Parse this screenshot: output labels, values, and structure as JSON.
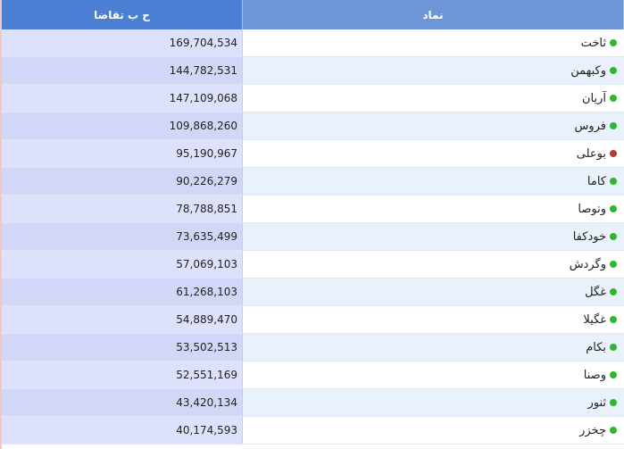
{
  "header": {
    "col_demand": "ح ب تقاضا",
    "col_symbol": "نماد"
  },
  "colors": {
    "up": "#2eb82e",
    "down": "#b03a3a",
    "header_left": "#4a7fd4",
    "header_right": "#6e95d8"
  },
  "rows": [
    {
      "symbol": "ثاخت",
      "demand_volume": "169,704,534",
      "status": "green"
    },
    {
      "symbol": "وکبهمن",
      "demand_volume": "144,782,531",
      "status": "green"
    },
    {
      "symbol": "آریان",
      "demand_volume": "147,109,068",
      "status": "green"
    },
    {
      "symbol": "فروس",
      "demand_volume": "109,868,260",
      "status": "green"
    },
    {
      "symbol": "بوعلی",
      "demand_volume": "95,190,967",
      "status": "red"
    },
    {
      "symbol": "کاما",
      "demand_volume": "90,226,279",
      "status": "green"
    },
    {
      "symbol": "وتوصا",
      "demand_volume": "78,788,851",
      "status": "green"
    },
    {
      "symbol": "خودکفا",
      "demand_volume": "73,635,499",
      "status": "green"
    },
    {
      "symbol": "وگردش",
      "demand_volume": "57,069,103",
      "status": "green"
    },
    {
      "symbol": "غگل",
      "demand_volume": "61,268,103",
      "status": "green"
    },
    {
      "symbol": "غگیلا",
      "demand_volume": "54,889,470",
      "status": "green"
    },
    {
      "symbol": "بکام",
      "demand_volume": "53,502,513",
      "status": "green"
    },
    {
      "symbol": "وصنا",
      "demand_volume": "52,551,169",
      "status": "green"
    },
    {
      "symbol": "ثنور",
      "demand_volume": "43,420,134",
      "status": "green"
    },
    {
      "symbol": "چخزر",
      "demand_volume": "40,174,593",
      "status": "green"
    }
  ]
}
